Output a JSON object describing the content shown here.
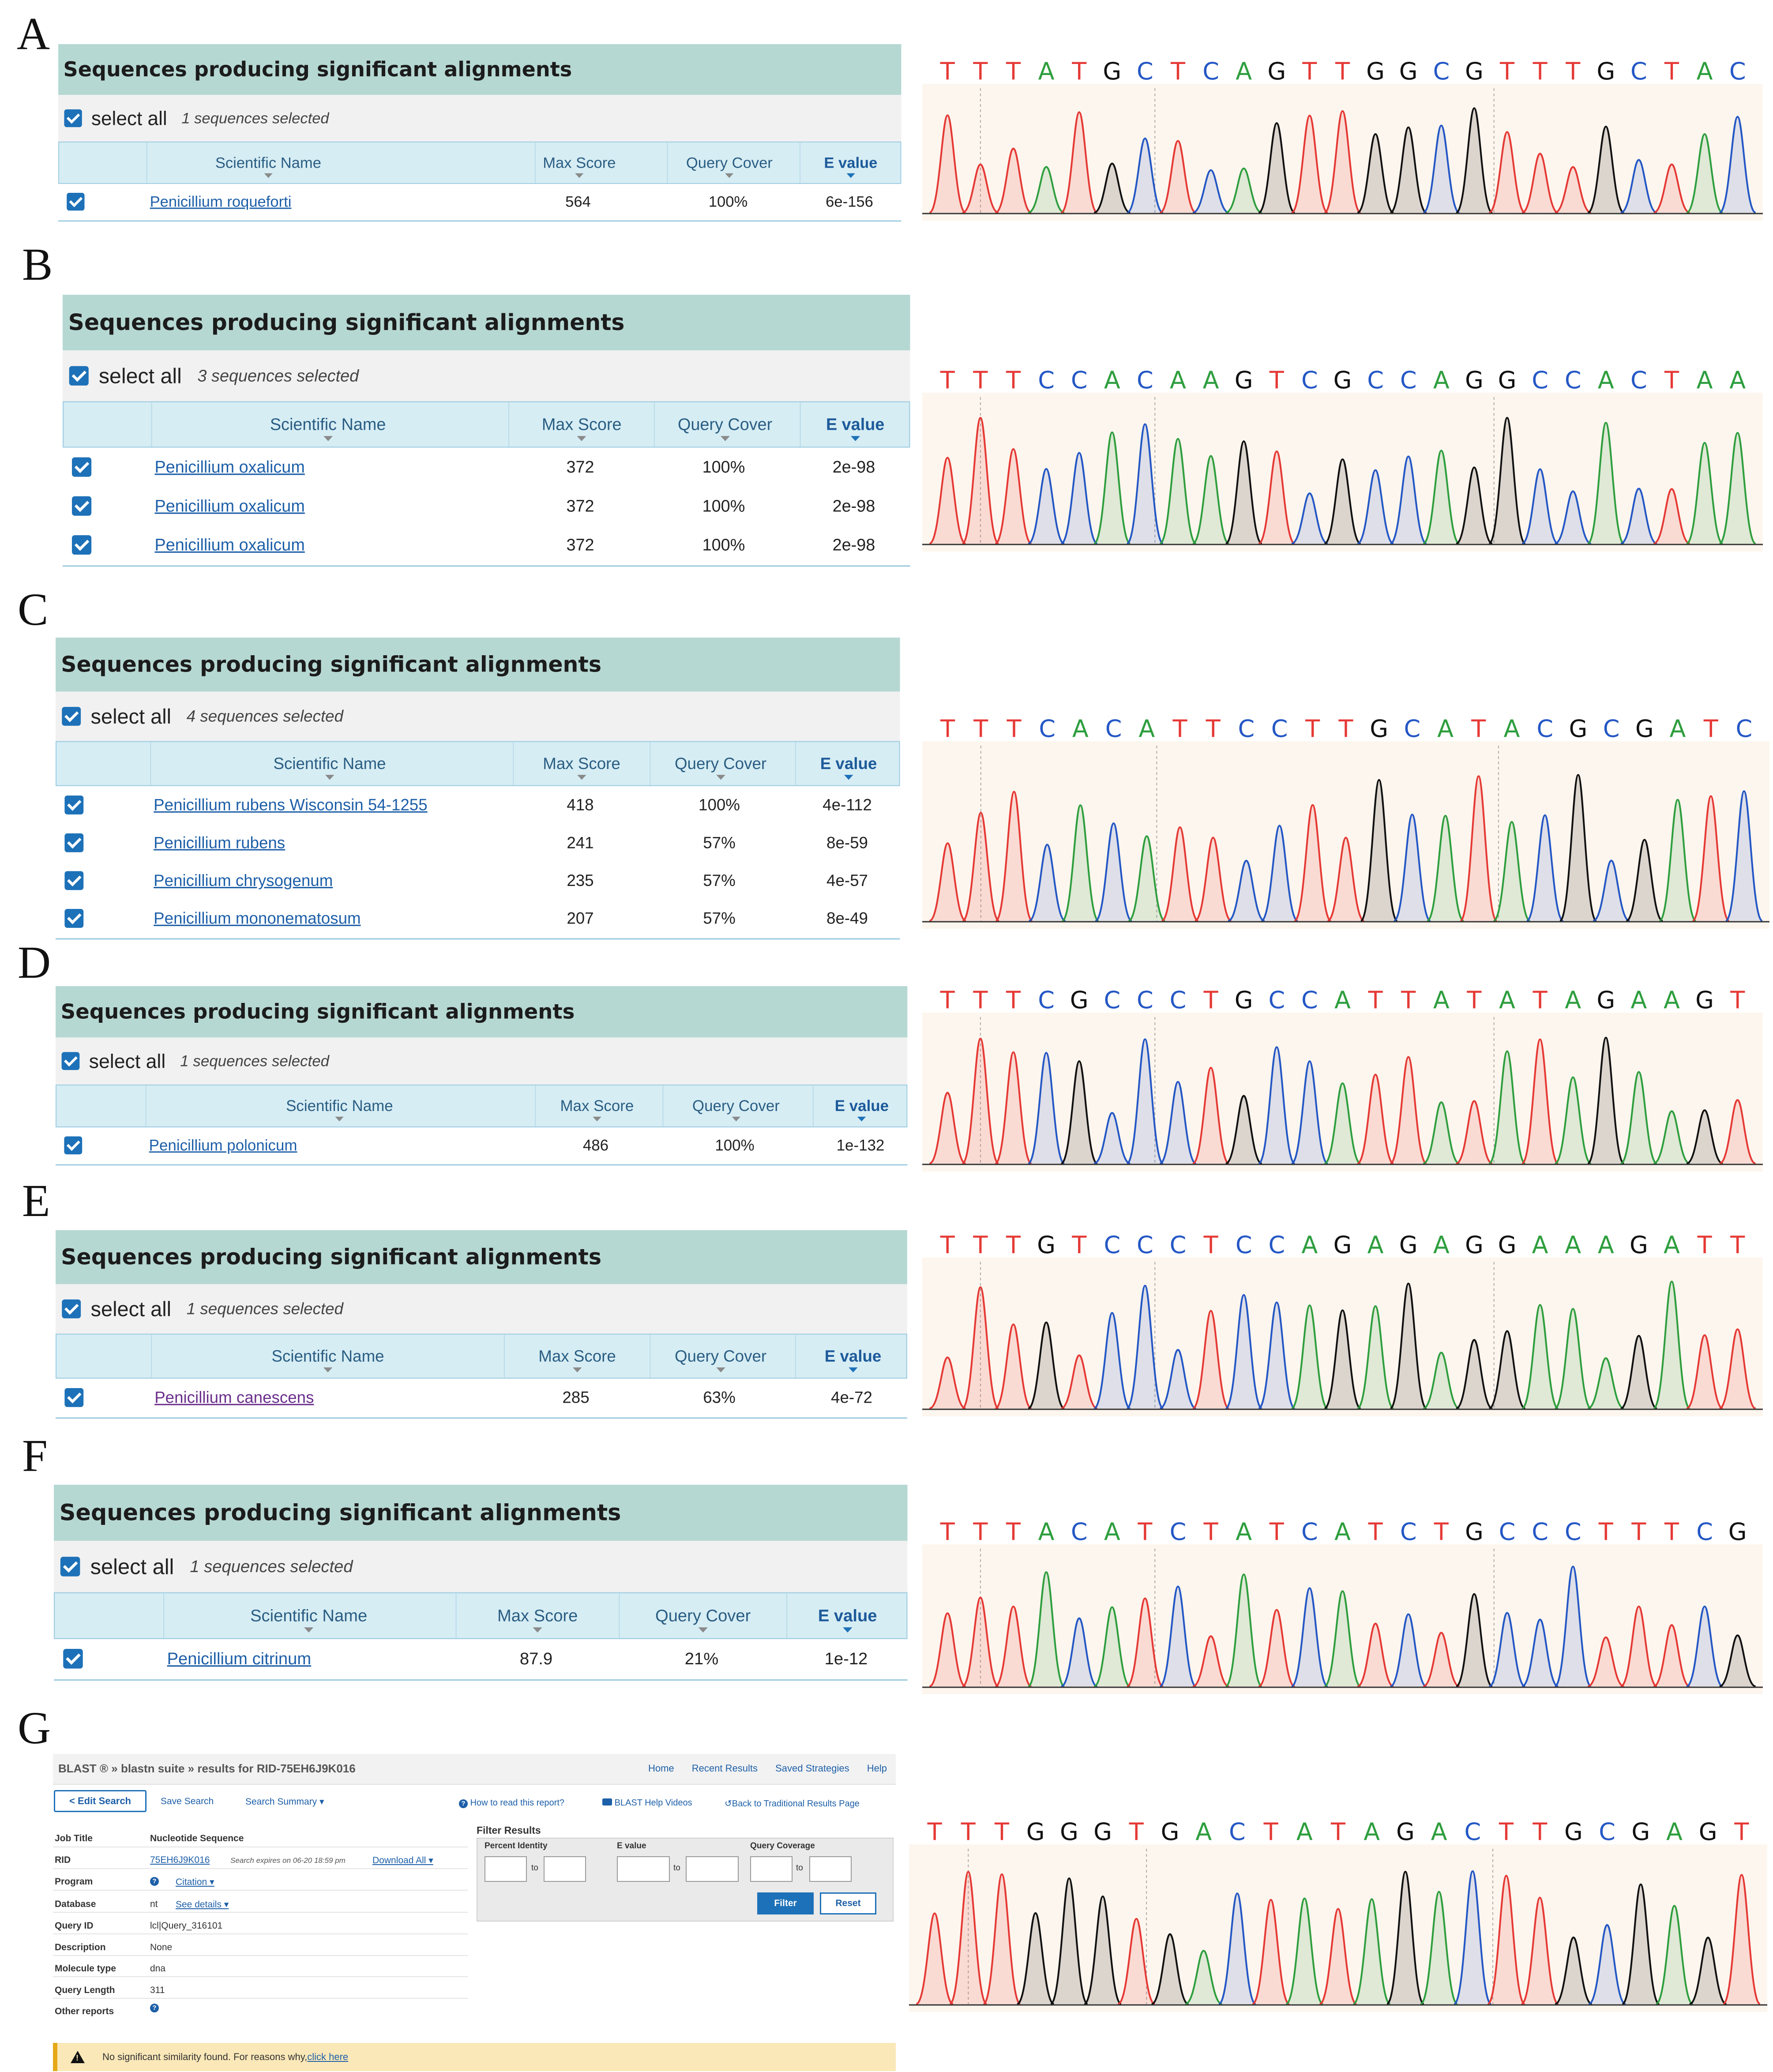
{
  "colors": {
    "A": "#2e9e3e",
    "C": "#2457c5",
    "G": "#111111",
    "T": "#e53935",
    "header_bg": "#b6d8d3",
    "link": "#1d5fa8"
  },
  "common": {
    "header_title": "Sequences producing significant alignments",
    "select_all": "select all",
    "col_name": "Scientific Name",
    "col_score": "Max Score",
    "col_cover": "Query Cover",
    "col_evalue": "E value"
  },
  "panels": [
    {
      "letter": "A",
      "selected": "1 sequences selected",
      "rows": [
        {
          "name": "Penicillium roqueforti",
          "score": "564",
          "cover": "100%",
          "evalue": "6e-156"
        }
      ],
      "sequence": "TTTATGCTCAGTTGGCGTTTGCTAC"
    },
    {
      "letter": "B",
      "selected": "3 sequences selected",
      "rows": [
        {
          "name": "Penicillium oxalicum",
          "score": "372",
          "cover": "100%",
          "evalue": "2e-98"
        },
        {
          "name": "Penicillium oxalicum",
          "score": "372",
          "cover": "100%",
          "evalue": "2e-98"
        },
        {
          "name": "Penicillium oxalicum",
          "score": "372",
          "cover": "100%",
          "evalue": "2e-98"
        }
      ],
      "sequence": "TTTCCACAAGTCGCCAGGCCACTAA"
    },
    {
      "letter": "C",
      "selected": "4 sequences selected",
      "rows": [
        {
          "name": "Penicillium rubens Wisconsin 54-1255",
          "score": "418",
          "cover": "100%",
          "evalue": "4e-112"
        },
        {
          "name": "Penicillium rubens",
          "score": "241",
          "cover": "57%",
          "evalue": "8e-59"
        },
        {
          "name": "Penicillium chrysogenum",
          "score": "235",
          "cover": "57%",
          "evalue": "4e-57"
        },
        {
          "name": "Penicillium mononematosum",
          "score": "207",
          "cover": "57%",
          "evalue": "8e-49"
        }
      ],
      "sequence": "TTTCACATTCCTTGCATACGCGATC"
    },
    {
      "letter": "D",
      "selected": "1 sequences selected",
      "rows": [
        {
          "name": "Penicillium polonicum",
          "score": "486",
          "cover": "100%",
          "evalue": "1e-132"
        }
      ],
      "sequence": "TTTCGCCCTGCCATTATATAGAAGT"
    },
    {
      "letter": "E",
      "selected": "1 sequences selected",
      "rows": [
        {
          "name": "Penicillium canescens",
          "score": "285",
          "cover": "63%",
          "evalue": "4e-72"
        }
      ],
      "sequence": "TTTGTCCCTCCAGAGAGGAAAGATT"
    },
    {
      "letter": "F",
      "selected": "1 sequences selected",
      "rows": [
        {
          "name": "Penicillium citrinum",
          "score": "87.9",
          "cover": "21%",
          "evalue": "1e-12"
        }
      ],
      "sequence": "TTTACATCTATCATCTGCCCTTTCG"
    }
  ],
  "g": {
    "letter": "G",
    "sequence": "TTTGGGTGACTATAGACTTGCGAGT",
    "crumb": "BLAST ® » blastn suite » results for RID-75EH6J9K016",
    "toplinks": [
      "Home",
      "Recent Results",
      "Saved Strategies",
      "Help"
    ],
    "edit_search": "< Edit Search",
    "save_search": "Save Search",
    "search_summary": "Search Summary ▾",
    "how_to_read": "How to read this report?",
    "help_videos": "BLAST Help Videos",
    "back_traditional": "Back to Traditional Results Page",
    "job_title_label": "Job Title",
    "job_title": "Nucleotide Sequence",
    "rid_label": "RID",
    "rid": "75EH6J9K016",
    "rid_note": "Search expires on 06-20 18:59 pm",
    "download_all": "Download All ▾",
    "program_label": "Program",
    "citation": "Citation ▾",
    "database_label": "Database",
    "database": "nt",
    "see_details": "See details ▾",
    "query_id_label": "Query ID",
    "query_id": "lcl|Query_316101",
    "description_label": "Description",
    "description": "None",
    "molecule_label": "Molecule type",
    "molecule": "dna",
    "qlen_label": "Query Length",
    "qlen": "311",
    "other_reports_label": "Other reports",
    "filter_title": "Filter Results",
    "percent_identity": "Percent Identity",
    "e_value": "E value",
    "query_coverage": "Query Coverage",
    "to": "to",
    "filter_btn": "Filter",
    "reset_btn": "Reset",
    "no_hits": "No significant similarity found. For reasons why,",
    "click_here": "click here"
  }
}
